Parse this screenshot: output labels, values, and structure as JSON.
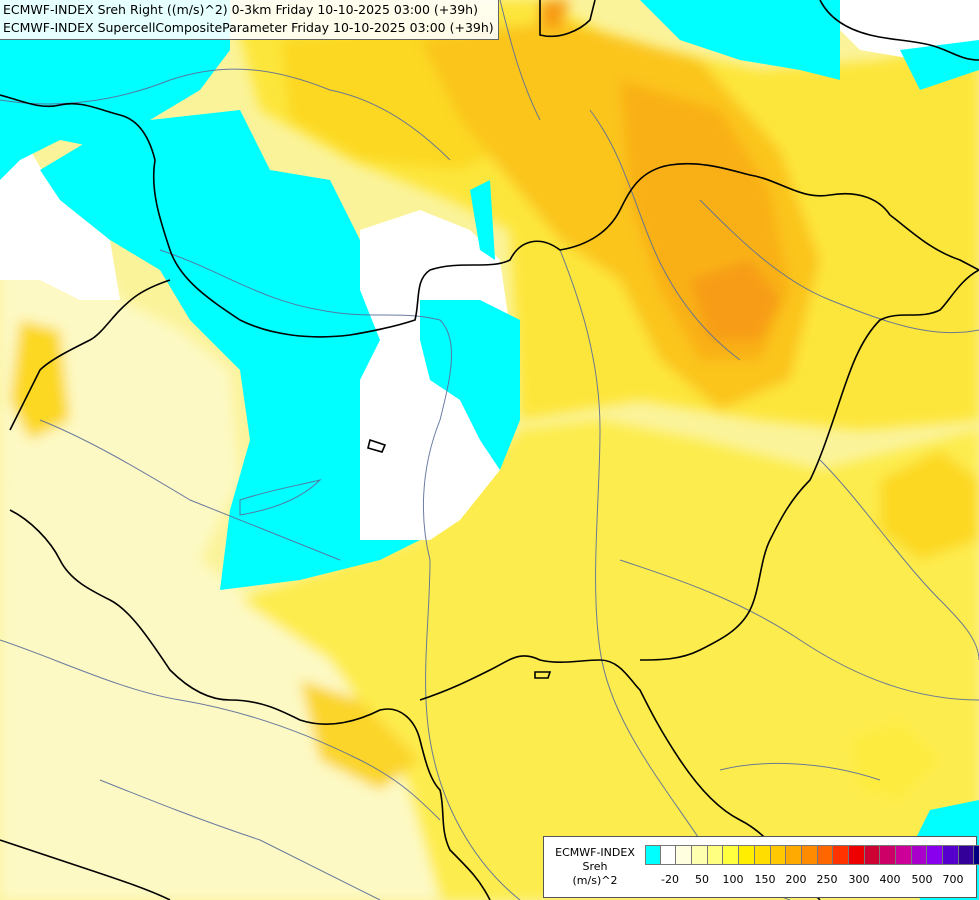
{
  "header": {
    "line1": "ECMWF-INDEX Sreh Right ((m/s)^2) 0-3km Friday 10-10-2025 03:00 (+39h)",
    "line2": "ECMWF-INDEX SupercellCompositeParameter Friday 10-10-2025 03:00 (+39h)"
  },
  "legend": {
    "label_lines": [
      "ECMWF-INDEX",
      "Sreh",
      "(m/s)^2"
    ],
    "colors": [
      "#00ffff",
      "#ffffff",
      "#ffffe0",
      "#ffffb0",
      "#ffff80",
      "#ffff40",
      "#ffee00",
      "#ffdd00",
      "#ffc800",
      "#ffaa00",
      "#ff8c00",
      "#ff6600",
      "#ff3300",
      "#ee0000",
      "#cc0033",
      "#cc0066",
      "#cc0099",
      "#aa00cc",
      "#8800ee",
      "#5500cc",
      "#330099",
      "#000080"
    ],
    "ticks": [
      "-20",
      "50",
      "100",
      "150",
      "200",
      "250",
      "300",
      "400",
      "500",
      "700"
    ]
  }
}
